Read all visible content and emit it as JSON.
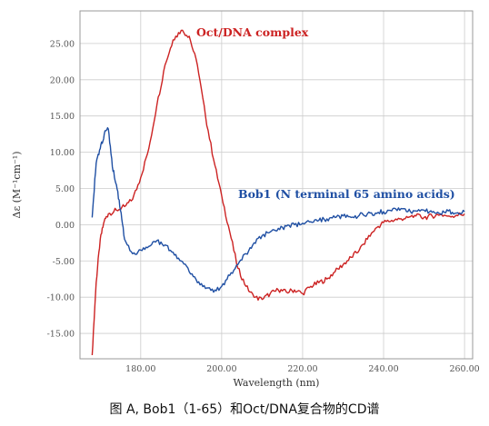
{
  "caption": "图 A, Bob1（1-65）和Oct/DNA复合物的CD谱",
  "chart_data": {
    "type": "line",
    "xlabel": "Wavelength (nm)",
    "ylabel": "Δε (M⁻¹cm⁻¹)",
    "xlim": [
      165,
      262
    ],
    "ylim": [
      -18.5,
      29.5
    ],
    "xticks": [
      180,
      200,
      220,
      240,
      260
    ],
    "xtick_labels": [
      "180.00",
      "200.00",
      "220.00",
      "240.00",
      "260.00"
    ],
    "yticks": [
      25,
      20,
      15,
      10,
      5,
      0,
      -5,
      -10,
      -15
    ],
    "ytick_labels": [
      "25.00",
      "20.00",
      "15.00",
      "10.00",
      "5.00",
      "0.00",
      "-5.00",
      "-10.00",
      "-15.00"
    ],
    "grid": true,
    "series": [
      {
        "name": "Oct/DNA complex",
        "color": "#cc2222",
        "x": [
          168,
          169,
          170,
          171,
          172,
          174,
          176,
          178,
          180,
          182,
          184,
          186,
          188,
          190,
          192,
          194,
          196,
          198,
          200,
          202,
          204,
          206,
          208,
          210,
          212,
          214,
          216,
          218,
          220,
          222,
          224,
          226,
          228,
          230,
          232,
          234,
          236,
          238,
          240,
          242,
          244,
          246,
          248,
          250,
          252,
          254,
          256,
          258,
          260
        ],
        "y": [
          -18,
          -8,
          -2,
          0.5,
          1.5,
          2.0,
          2.5,
          3.5,
          6.5,
          10.5,
          16.5,
          22,
          25.5,
          26.8,
          26.0,
          22,
          15,
          9,
          4,
          -1,
          -6,
          -8.5,
          -10,
          -10.3,
          -9.5,
          -9.0,
          -9.3,
          -9.0,
          -9.5,
          -8.5,
          -8.0,
          -7.5,
          -6.5,
          -5.5,
          -4.5,
          -3.5,
          -2.0,
          -0.5,
          0.3,
          0.6,
          0.8,
          1.0,
          1.2,
          1.0,
          1.2,
          1.4,
          1.2,
          1.3,
          1.5
        ]
      },
      {
        "name": "Bob1 (N terminal 65 amino acids)",
        "color": "#1f4fa3",
        "x": [
          168,
          169,
          170,
          171,
          172,
          173,
          174,
          175,
          176,
          178,
          180,
          182,
          184,
          186,
          188,
          190,
          192,
          194,
          196,
          198,
          200,
          202,
          204,
          206,
          208,
          210,
          212,
          214,
          216,
          218,
          220,
          222,
          224,
          226,
          228,
          230,
          232,
          234,
          236,
          238,
          240,
          242,
          244,
          246,
          248,
          250,
          252,
          254,
          256,
          258,
          260
        ],
        "y": [
          1.0,
          8.5,
          10.5,
          12.5,
          13.2,
          8.0,
          5.5,
          2.0,
          -2.0,
          -4.0,
          -3.5,
          -3.0,
          -2.2,
          -2.8,
          -3.8,
          -5.0,
          -6.5,
          -8.0,
          -8.8,
          -9.3,
          -8.5,
          -7.0,
          -5.5,
          -4.0,
          -2.5,
          -1.5,
          -1.0,
          -0.5,
          -0.2,
          0.0,
          0.2,
          0.4,
          0.6,
          0.8,
          1.0,
          1.2,
          1.0,
          1.3,
          1.5,
          1.6,
          1.8,
          1.9,
          2.0,
          1.8,
          1.9,
          2.0,
          1.7,
          1.5,
          1.9,
          1.6,
          1.8
        ]
      }
    ],
    "annotations": [
      {
        "series": "Oct/DNA complex",
        "text": "Oct/DNA complex"
      },
      {
        "series": "Bob1 (N terminal 65 amino acids)",
        "text": "Bob1 (N terminal 65 amino acids)"
      }
    ]
  }
}
